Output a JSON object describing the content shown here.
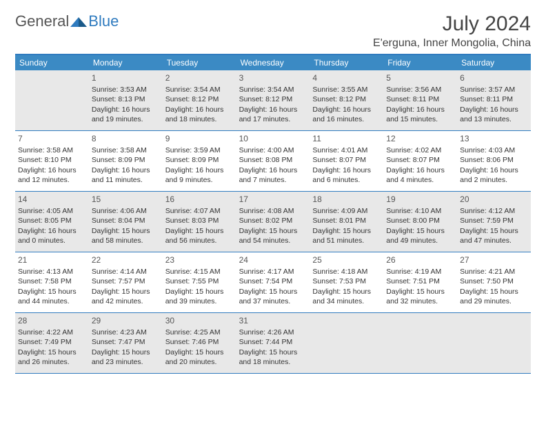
{
  "logo": {
    "general": "General",
    "blue": "Blue"
  },
  "title": "July 2024",
  "location": "E'erguna, Inner Mongolia, China",
  "colors": {
    "header_bg": "#3b8ac4",
    "border": "#2f7bbf",
    "shaded_bg": "#e8e8e8",
    "text": "#333333"
  },
  "weekdays": [
    "Sunday",
    "Monday",
    "Tuesday",
    "Wednesday",
    "Thursday",
    "Friday",
    "Saturday"
  ],
  "weeks": [
    [
      {
        "blank": true
      },
      {
        "day": "1",
        "sunrise": "Sunrise: 3:53 AM",
        "sunset": "Sunset: 8:13 PM",
        "d1": "Daylight: 16 hours",
        "d2": "and 19 minutes."
      },
      {
        "day": "2",
        "sunrise": "Sunrise: 3:54 AM",
        "sunset": "Sunset: 8:12 PM",
        "d1": "Daylight: 16 hours",
        "d2": "and 18 minutes."
      },
      {
        "day": "3",
        "sunrise": "Sunrise: 3:54 AM",
        "sunset": "Sunset: 8:12 PM",
        "d1": "Daylight: 16 hours",
        "d2": "and 17 minutes."
      },
      {
        "day": "4",
        "sunrise": "Sunrise: 3:55 AM",
        "sunset": "Sunset: 8:12 PM",
        "d1": "Daylight: 16 hours",
        "d2": "and 16 minutes."
      },
      {
        "day": "5",
        "sunrise": "Sunrise: 3:56 AM",
        "sunset": "Sunset: 8:11 PM",
        "d1": "Daylight: 16 hours",
        "d2": "and 15 minutes."
      },
      {
        "day": "6",
        "sunrise": "Sunrise: 3:57 AM",
        "sunset": "Sunset: 8:11 PM",
        "d1": "Daylight: 16 hours",
        "d2": "and 13 minutes."
      }
    ],
    [
      {
        "day": "7",
        "sunrise": "Sunrise: 3:58 AM",
        "sunset": "Sunset: 8:10 PM",
        "d1": "Daylight: 16 hours",
        "d2": "and 12 minutes."
      },
      {
        "day": "8",
        "sunrise": "Sunrise: 3:58 AM",
        "sunset": "Sunset: 8:09 PM",
        "d1": "Daylight: 16 hours",
        "d2": "and 11 minutes."
      },
      {
        "day": "9",
        "sunrise": "Sunrise: 3:59 AM",
        "sunset": "Sunset: 8:09 PM",
        "d1": "Daylight: 16 hours",
        "d2": "and 9 minutes."
      },
      {
        "day": "10",
        "sunrise": "Sunrise: 4:00 AM",
        "sunset": "Sunset: 8:08 PM",
        "d1": "Daylight: 16 hours",
        "d2": "and 7 minutes."
      },
      {
        "day": "11",
        "sunrise": "Sunrise: 4:01 AM",
        "sunset": "Sunset: 8:07 PM",
        "d1": "Daylight: 16 hours",
        "d2": "and 6 minutes."
      },
      {
        "day": "12",
        "sunrise": "Sunrise: 4:02 AM",
        "sunset": "Sunset: 8:07 PM",
        "d1": "Daylight: 16 hours",
        "d2": "and 4 minutes."
      },
      {
        "day": "13",
        "sunrise": "Sunrise: 4:03 AM",
        "sunset": "Sunset: 8:06 PM",
        "d1": "Daylight: 16 hours",
        "d2": "and 2 minutes."
      }
    ],
    [
      {
        "day": "14",
        "sunrise": "Sunrise: 4:05 AM",
        "sunset": "Sunset: 8:05 PM",
        "d1": "Daylight: 16 hours",
        "d2": "and 0 minutes."
      },
      {
        "day": "15",
        "sunrise": "Sunrise: 4:06 AM",
        "sunset": "Sunset: 8:04 PM",
        "d1": "Daylight: 15 hours",
        "d2": "and 58 minutes."
      },
      {
        "day": "16",
        "sunrise": "Sunrise: 4:07 AM",
        "sunset": "Sunset: 8:03 PM",
        "d1": "Daylight: 15 hours",
        "d2": "and 56 minutes."
      },
      {
        "day": "17",
        "sunrise": "Sunrise: 4:08 AM",
        "sunset": "Sunset: 8:02 PM",
        "d1": "Daylight: 15 hours",
        "d2": "and 54 minutes."
      },
      {
        "day": "18",
        "sunrise": "Sunrise: 4:09 AM",
        "sunset": "Sunset: 8:01 PM",
        "d1": "Daylight: 15 hours",
        "d2": "and 51 minutes."
      },
      {
        "day": "19",
        "sunrise": "Sunrise: 4:10 AM",
        "sunset": "Sunset: 8:00 PM",
        "d1": "Daylight: 15 hours",
        "d2": "and 49 minutes."
      },
      {
        "day": "20",
        "sunrise": "Sunrise: 4:12 AM",
        "sunset": "Sunset: 7:59 PM",
        "d1": "Daylight: 15 hours",
        "d2": "and 47 minutes."
      }
    ],
    [
      {
        "day": "21",
        "sunrise": "Sunrise: 4:13 AM",
        "sunset": "Sunset: 7:58 PM",
        "d1": "Daylight: 15 hours",
        "d2": "and 44 minutes."
      },
      {
        "day": "22",
        "sunrise": "Sunrise: 4:14 AM",
        "sunset": "Sunset: 7:57 PM",
        "d1": "Daylight: 15 hours",
        "d2": "and 42 minutes."
      },
      {
        "day": "23",
        "sunrise": "Sunrise: 4:15 AM",
        "sunset": "Sunset: 7:55 PM",
        "d1": "Daylight: 15 hours",
        "d2": "and 39 minutes."
      },
      {
        "day": "24",
        "sunrise": "Sunrise: 4:17 AM",
        "sunset": "Sunset: 7:54 PM",
        "d1": "Daylight: 15 hours",
        "d2": "and 37 minutes."
      },
      {
        "day": "25",
        "sunrise": "Sunrise: 4:18 AM",
        "sunset": "Sunset: 7:53 PM",
        "d1": "Daylight: 15 hours",
        "d2": "and 34 minutes."
      },
      {
        "day": "26",
        "sunrise": "Sunrise: 4:19 AM",
        "sunset": "Sunset: 7:51 PM",
        "d1": "Daylight: 15 hours",
        "d2": "and 32 minutes."
      },
      {
        "day": "27",
        "sunrise": "Sunrise: 4:21 AM",
        "sunset": "Sunset: 7:50 PM",
        "d1": "Daylight: 15 hours",
        "d2": "and 29 minutes."
      }
    ],
    [
      {
        "day": "28",
        "sunrise": "Sunrise: 4:22 AM",
        "sunset": "Sunset: 7:49 PM",
        "d1": "Daylight: 15 hours",
        "d2": "and 26 minutes."
      },
      {
        "day": "29",
        "sunrise": "Sunrise: 4:23 AM",
        "sunset": "Sunset: 7:47 PM",
        "d1": "Daylight: 15 hours",
        "d2": "and 23 minutes."
      },
      {
        "day": "30",
        "sunrise": "Sunrise: 4:25 AM",
        "sunset": "Sunset: 7:46 PM",
        "d1": "Daylight: 15 hours",
        "d2": "and 20 minutes."
      },
      {
        "day": "31",
        "sunrise": "Sunrise: 4:26 AM",
        "sunset": "Sunset: 7:44 PM",
        "d1": "Daylight: 15 hours",
        "d2": "and 18 minutes."
      },
      {
        "blank": true
      },
      {
        "blank": true
      },
      {
        "blank": true
      }
    ]
  ]
}
